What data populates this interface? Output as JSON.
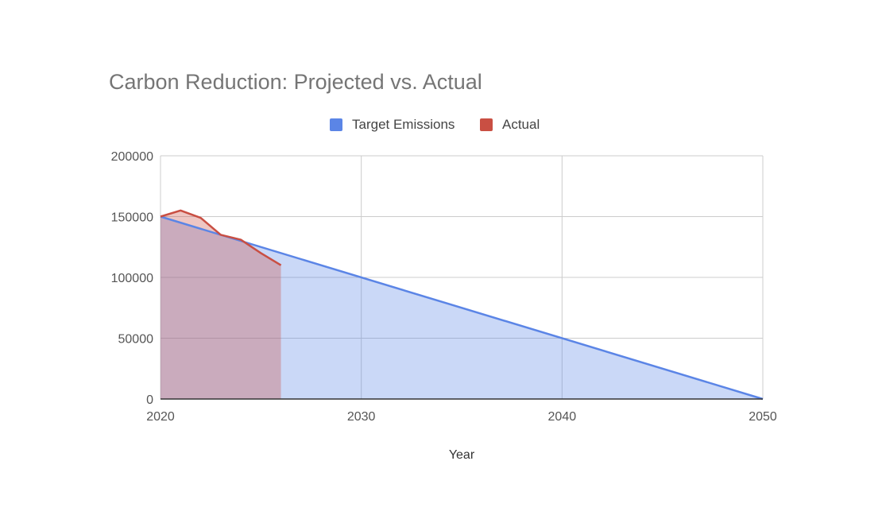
{
  "colors": {
    "target": "#5b85e6",
    "actual": "#c94f43",
    "grid": "#cccccc",
    "axis": "#333333",
    "text": "#555555"
  },
  "chart_data": {
    "type": "area",
    "title": "Carbon Reduction: Projected vs. Actual",
    "xlabel": "Year",
    "ylabel": "",
    "xlim": [
      2020,
      2050
    ],
    "ylim": [
      0,
      200000
    ],
    "x_ticks": [
      2020,
      2030,
      2040,
      2050
    ],
    "y_ticks": [
      0,
      50000,
      100000,
      150000,
      200000
    ],
    "grid": true,
    "legend_position": "top",
    "series": [
      {
        "name": "Target Emissions",
        "color": "#5b85e6",
        "points": [
          [
            2020,
            150000
          ],
          [
            2050,
            0
          ]
        ]
      },
      {
        "name": "Actual",
        "color": "#c94f43",
        "points": [
          [
            2020,
            150000
          ],
          [
            2021,
            155000
          ],
          [
            2022,
            149000
          ],
          [
            2023,
            135000
          ],
          [
            2024,
            131000
          ],
          [
            2025,
            120000
          ],
          [
            2026,
            110000
          ]
        ]
      }
    ]
  }
}
